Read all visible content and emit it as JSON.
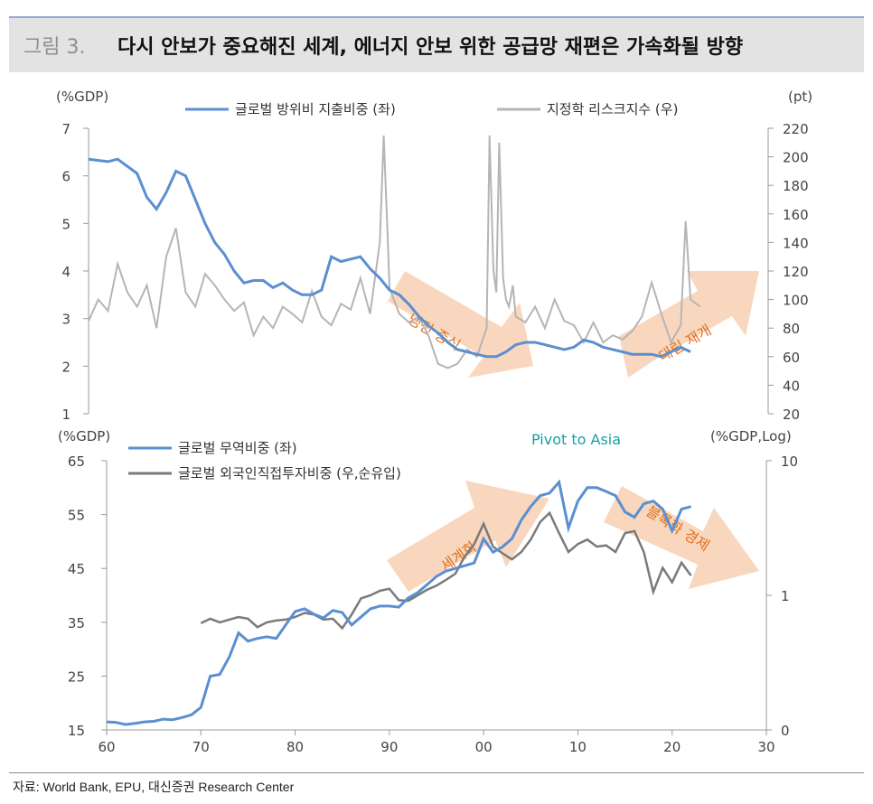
{
  "header": {
    "number": "그림 3.",
    "title": "다시 안보가 중요해진 세계, 에너지 안보 위한 공급망 재편은 가속화될 방향"
  },
  "source": "자료: World Bank, EPU, 대신증권 Research Center",
  "colors": {
    "blue": "#5b8fd0",
    "gray_top": "#b5b5b5",
    "gray_bottom": "#7a7a7a",
    "arrow": "#f7c9a8",
    "arrow_text": "#e07020",
    "pivot": "#1aa0a0"
  },
  "chart_data": [
    {
      "type": "line",
      "left_unit": "(%GDP)",
      "right_unit": "(pt)",
      "ylim_left": [
        1,
        7
      ],
      "ylim_right": [
        20,
        220
      ],
      "left_ticks": [
        "1",
        "2",
        "3",
        "4",
        "5",
        "6",
        "7"
      ],
      "right_ticks": [
        "20",
        "40",
        "60",
        "80",
        "100",
        "120",
        "140",
        "160",
        "180",
        "200",
        "220"
      ],
      "xlim": [
        1960,
        2030
      ],
      "series": [
        {
          "name": "글로벌 방위비 지출비중 (좌)",
          "axis": "left",
          "x": [
            1960,
            1962,
            1963,
            1965,
            1966,
            1967,
            1968,
            1969,
            1970,
            1971,
            1972,
            1973,
            1974,
            1975,
            1976,
            1977,
            1978,
            1979,
            1980,
            1981,
            1982,
            1983,
            1984,
            1985,
            1986,
            1987,
            1988,
            1989,
            1990,
            1991,
            1992,
            1993,
            1994,
            1995,
            1996,
            1997,
            1998,
            1999,
            2000,
            2001,
            2002,
            2003,
            2004,
            2005,
            2006,
            2007,
            2008,
            2009,
            2010,
            2011,
            2012,
            2013,
            2014,
            2015,
            2016,
            2017,
            2018,
            2019,
            2020,
            2021,
            2022
          ],
          "values": [
            6.35,
            6.3,
            6.35,
            6.05,
            5.55,
            5.3,
            5.65,
            6.1,
            6.0,
            5.5,
            5.0,
            4.6,
            4.35,
            4.0,
            3.75,
            3.8,
            3.8,
            3.65,
            3.75,
            3.6,
            3.5,
            3.5,
            3.6,
            4.3,
            4.2,
            4.25,
            4.3,
            4.05,
            3.85,
            3.6,
            3.5,
            3.3,
            3.05,
            2.85,
            2.7,
            2.5,
            2.35,
            2.3,
            2.25,
            2.2,
            2.2,
            2.3,
            2.45,
            2.5,
            2.5,
            2.45,
            2.4,
            2.35,
            2.4,
            2.55,
            2.5,
            2.4,
            2.35,
            2.3,
            2.25,
            2.25,
            2.25,
            2.2,
            2.3,
            2.4,
            2.3
          ]
        },
        {
          "name": "지정학 리스크지수 (우)",
          "axis": "right",
          "x": [
            1960,
            1961,
            1962,
            1963,
            1964,
            1965,
            1966,
            1967,
            1968,
            1969,
            1970,
            1971,
            1972,
            1973,
            1974,
            1975,
            1976,
            1977,
            1978,
            1979,
            1980,
            1981,
            1982,
            1983,
            1984,
            1985,
            1986,
            1987,
            1988,
            1989,
            1990,
            1990.4,
            1990.8,
            1991,
            1992,
            1993,
            1994,
            1995,
            1996,
            1997,
            1998,
            1999,
            2000,
            2001,
            2001.3,
            2001.7,
            2002,
            2002.3,
            2002.7,
            2003,
            2003.3,
            2003.7,
            2004,
            2005,
            2006,
            2007,
            2008,
            2009,
            2010,
            2011,
            2012,
            2013,
            2014,
            2015,
            2016,
            2017,
            2018,
            2019,
            2020,
            2021,
            2021.5,
            2022,
            2023
          ],
          "values": [
            85,
            100,
            92,
            125,
            105,
            95,
            110,
            80,
            130,
            150,
            105,
            95,
            118,
            110,
            100,
            92,
            98,
            75,
            88,
            80,
            95,
            90,
            84,
            106,
            88,
            82,
            97,
            93,
            115,
            90,
            140,
            215,
            145,
            108,
            90,
            84,
            88,
            75,
            55,
            52,
            55,
            65,
            60,
            80,
            215,
            120,
            105,
            210,
            115,
            100,
            95,
            110,
            88,
            84,
            95,
            80,
            100,
            85,
            82,
            70,
            84,
            70,
            75,
            72,
            78,
            88,
            112,
            90,
            70,
            82,
            155,
            100,
            95
          ]
        }
      ]
    },
    {
      "type": "line",
      "title_annotation": "Pivot to Asia",
      "left_unit": "(%GDP)",
      "right_unit": "(%GDP,Log)",
      "ylim_left": [
        15,
        65
      ],
      "right_log_range": [
        0.1,
        10
      ],
      "left_ticks": [
        "15",
        "25",
        "35",
        "45",
        "55",
        "65"
      ],
      "right_ticks": [
        "0",
        "1",
        "10"
      ],
      "x_ticks": [
        "60",
        "70",
        "80",
        "90",
        "00",
        "10",
        "20",
        "30"
      ],
      "xlim": [
        1960,
        2030
      ],
      "series": [
        {
          "name": "글로벌 무역비중 (좌)",
          "axis": "left",
          "x": [
            1960,
            1961,
            1962,
            1963,
            1964,
            1965,
            1966,
            1967,
            1968,
            1969,
            1970,
            1971,
            1972,
            1973,
            1974,
            1975,
            1976,
            1977,
            1978,
            1979,
            1980,
            1981,
            1982,
            1983,
            1984,
            1985,
            1986,
            1987,
            1988,
            1989,
            1990,
            1991,
            1992,
            1993,
            1994,
            1995,
            1996,
            1997,
            1998,
            1999,
            2000,
            2001,
            2002,
            2003,
            2004,
            2005,
            2006,
            2007,
            2008,
            2009,
            2010,
            2011,
            2012,
            2013,
            2014,
            2015,
            2016,
            2017,
            2018,
            2019,
            2020,
            2021,
            2022
          ],
          "values": [
            16.5,
            16.4,
            16.0,
            16.2,
            16.5,
            16.6,
            17.0,
            16.9,
            17.3,
            17.8,
            19.2,
            25.0,
            25.3,
            28.5,
            33.0,
            31.5,
            32.0,
            32.3,
            32.0,
            34.5,
            37.0,
            37.5,
            36.5,
            35.8,
            37.2,
            36.8,
            34.5,
            36.0,
            37.5,
            38.0,
            38.0,
            37.8,
            39.5,
            40.5,
            42.0,
            43.5,
            44.5,
            45.0,
            45.5,
            46.0,
            50.5,
            48.0,
            49.0,
            50.5,
            54.0,
            56.5,
            58.5,
            59.0,
            61.0,
            52.5,
            57.5,
            60.0,
            60.0,
            59.3,
            58.5,
            55.5,
            54.5,
            57.0,
            57.5,
            56.0,
            52.0,
            56.0,
            56.5
          ]
        },
        {
          "name": "글로벌 외국인직접투자비중 (우,순유입)",
          "axis": "right",
          "x": [
            1970,
            1971,
            1972,
            1973,
            1974,
            1975,
            1976,
            1977,
            1978,
            1979,
            1980,
            1981,
            1982,
            1983,
            1984,
            1985,
            1986,
            1987,
            1988,
            1989,
            1990,
            1991,
            1992,
            1993,
            1994,
            1995,
            1996,
            1997,
            1998,
            1999,
            2000,
            2001,
            2002,
            2003,
            2004,
            2005,
            2006,
            2007,
            2008,
            2009,
            2010,
            2011,
            2012,
            2013,
            2014,
            2015,
            2016,
            2017,
            2018,
            2019,
            2020,
            2021,
            2022
          ],
          "values": [
            0.62,
            0.67,
            0.63,
            0.66,
            0.69,
            0.67,
            0.58,
            0.63,
            0.65,
            0.66,
            0.69,
            0.74,
            0.72,
            0.66,
            0.67,
            0.57,
            0.72,
            0.95,
            1.0,
            1.08,
            1.12,
            0.92,
            0.91,
            1.0,
            1.1,
            1.18,
            1.3,
            1.45,
            1.95,
            2.4,
            3.4,
            2.3,
            2.05,
            1.85,
            2.1,
            2.6,
            3.5,
            4.1,
            2.9,
            2.1,
            2.4,
            2.6,
            2.3,
            2.35,
            2.1,
            2.9,
            3.0,
            2.1,
            1.06,
            1.6,
            1.25,
            1.75,
            1.4
          ]
        }
      ],
      "arrows": [
        "세계화",
        "블록화 경제"
      ]
    }
  ],
  "top_arrows": [
    "냉전 종식",
    "대립 재개"
  ]
}
